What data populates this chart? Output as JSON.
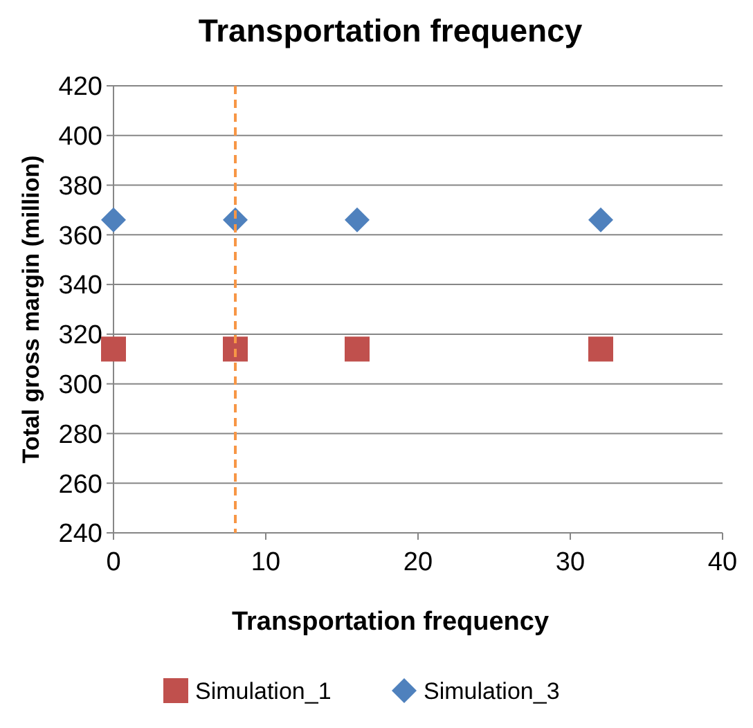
{
  "chart_data": {
    "type": "scatter",
    "title": "Transportation frequency",
    "xlabel": "Transportation frequency",
    "ylabel": "Total gross margin (million)",
    "x": [
      0,
      8,
      16,
      32
    ],
    "series": [
      {
        "name": "Simulation_1",
        "color": "#c0504d",
        "marker": "square",
        "values": [
          314,
          314,
          314,
          314
        ]
      },
      {
        "name": "Simulation_3",
        "color": "#4f81bd",
        "marker": "diamond",
        "values": [
          366,
          366,
          366,
          366
        ]
      }
    ],
    "xlim": [
      0,
      40
    ],
    "xticks": [
      0,
      10,
      20,
      30,
      40
    ],
    "ylim": [
      240,
      420
    ],
    "yticks": [
      240,
      260,
      280,
      300,
      320,
      340,
      360,
      380,
      400,
      420
    ],
    "grid": "y",
    "legend": "bottom",
    "ref_lines": [
      {
        "axis": "x",
        "value": 8,
        "color": "#f79646",
        "line_style": "dashed"
      }
    ]
  }
}
